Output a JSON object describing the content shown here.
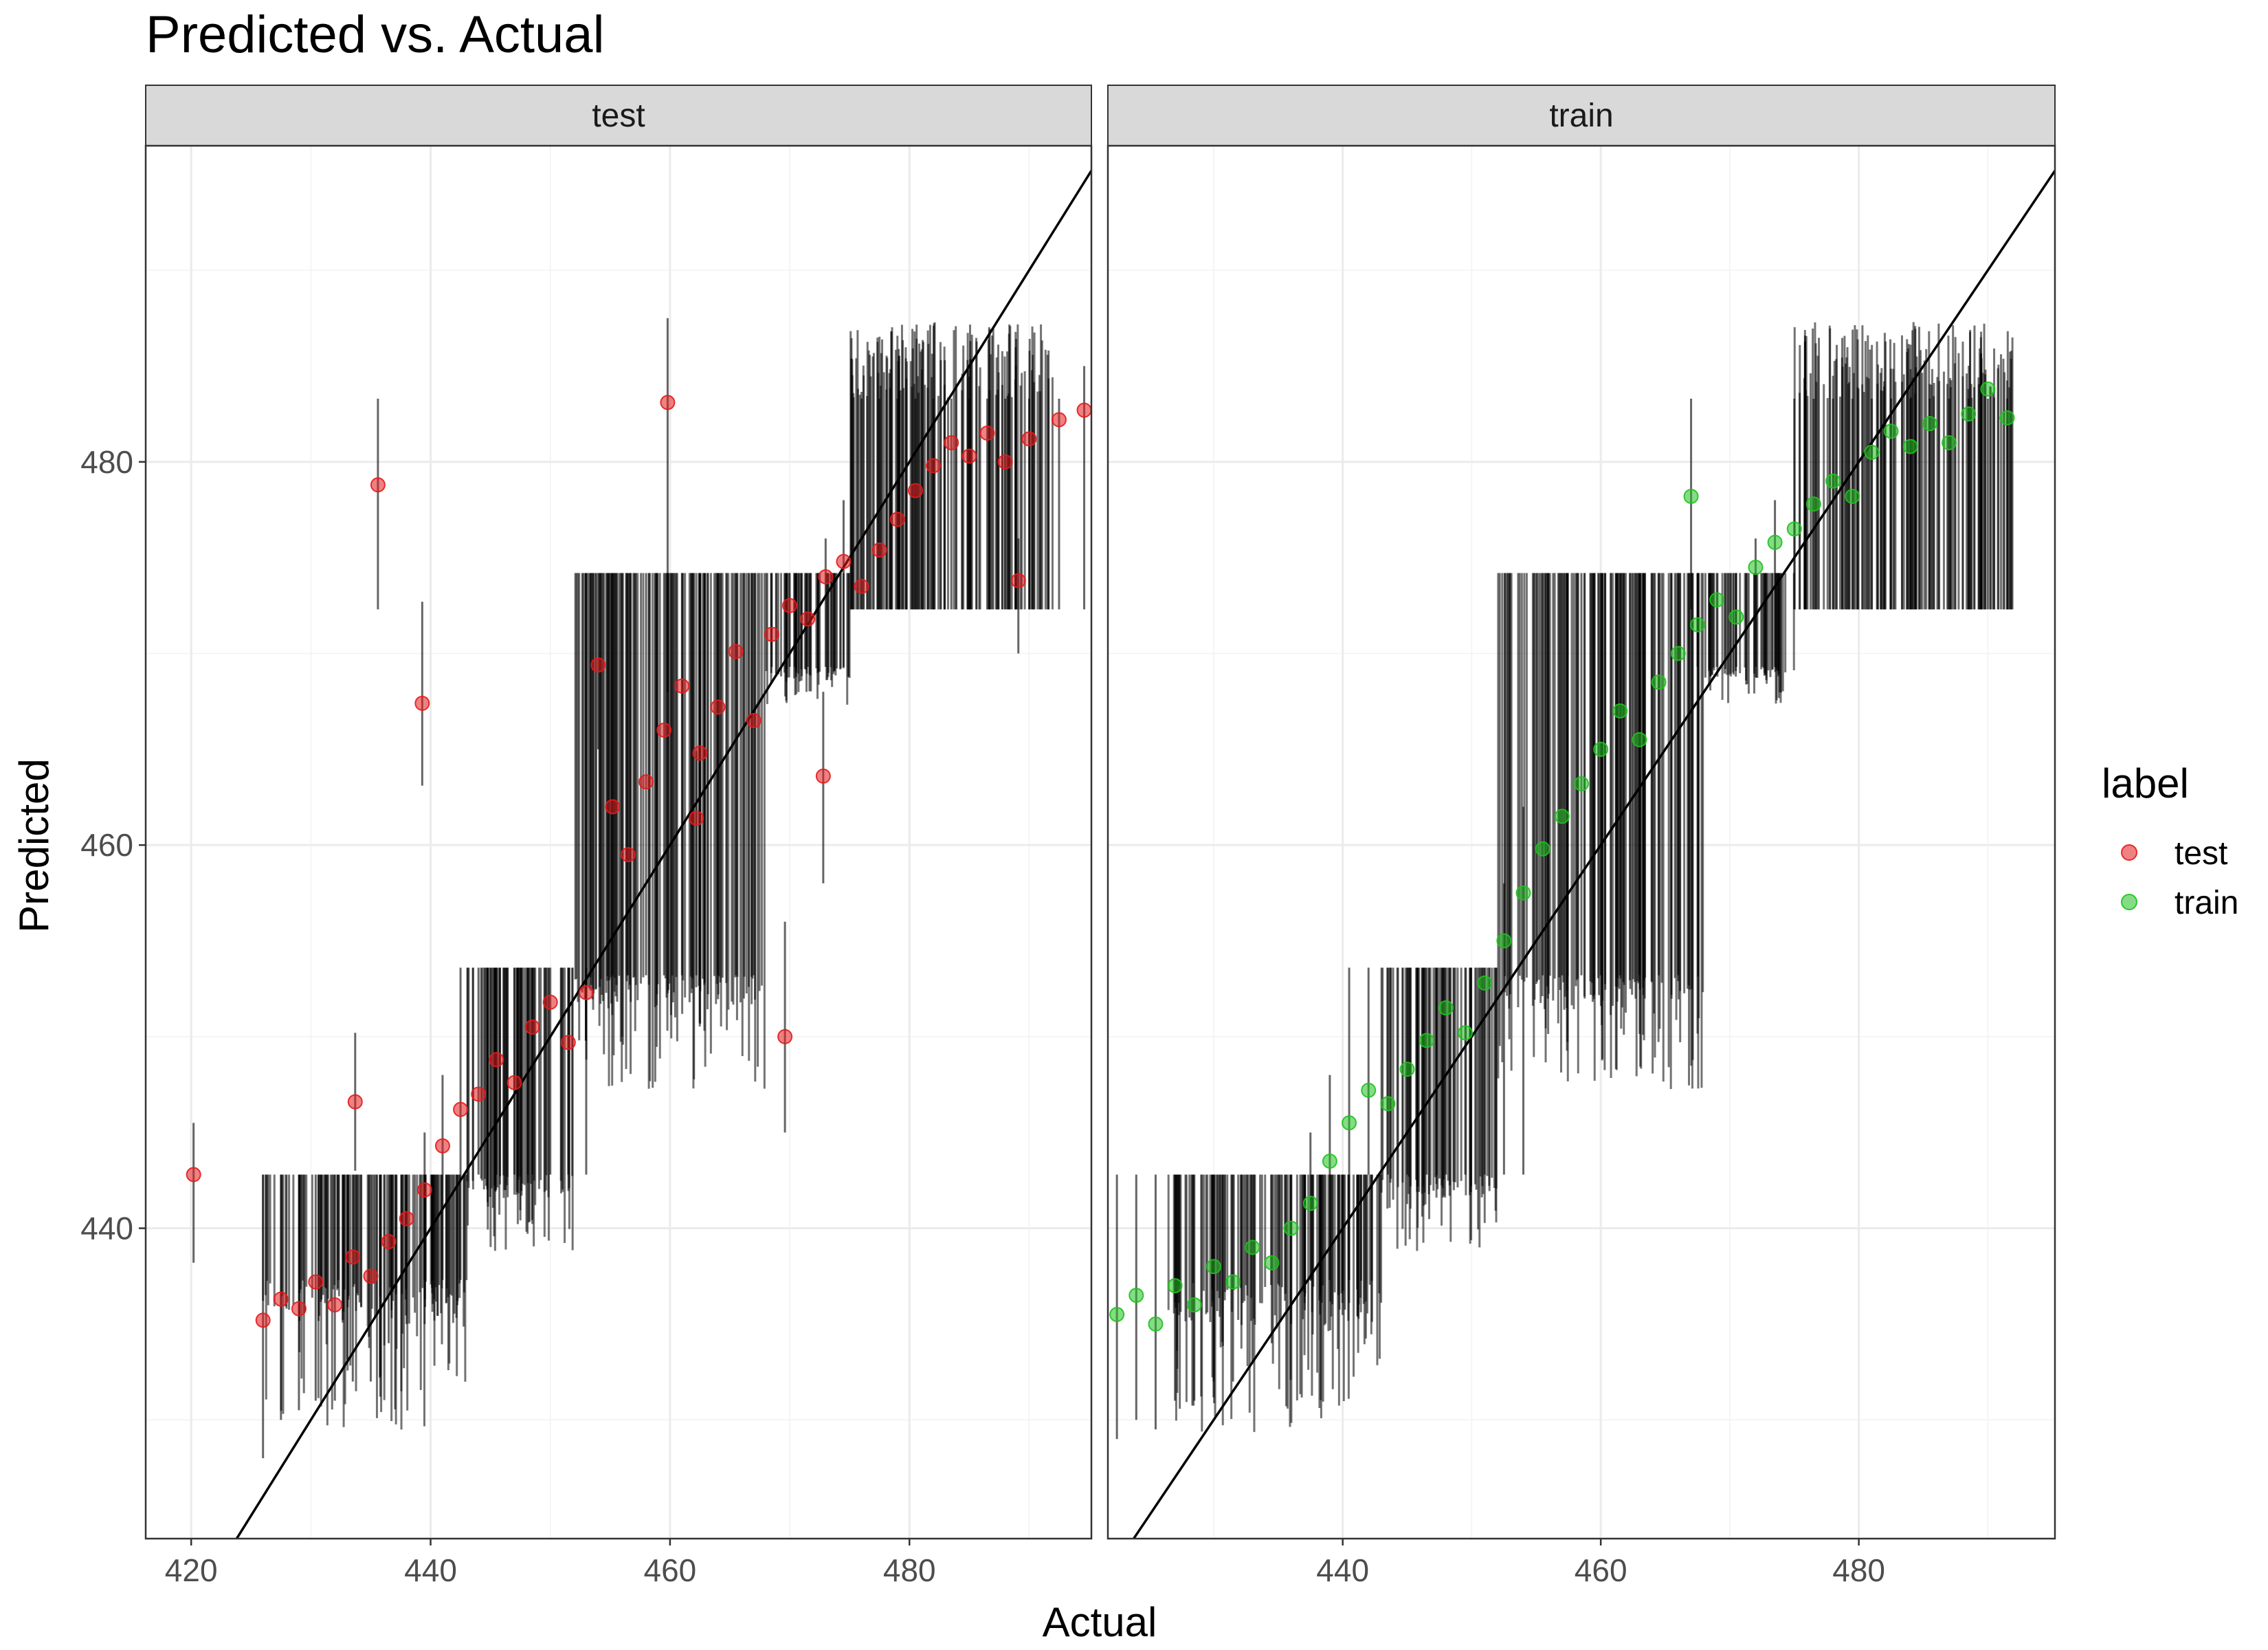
{
  "chart_data": {
    "type": "scatter",
    "title": "Predicted vs. Actual",
    "xlabel": "Actual",
    "ylabel": "Predicted",
    "facets": [
      {
        "label": "test",
        "xlim": [
          416.2,
          495.2
        ],
        "xticks": [
          420,
          440,
          460,
          480
        ]
      },
      {
        "label": "train",
        "xlim": [
          421.8,
          495.2
        ],
        "xticks": [
          440,
          460,
          480
        ]
      }
    ],
    "ylim": [
      423.8,
      496.5
    ],
    "yticks": [
      440,
      460,
      480
    ],
    "reference_line": {
      "type": "identity",
      "slope": 1,
      "intercept": 0
    },
    "legend": {
      "title": "label",
      "position": "right",
      "entries": [
        {
          "name": "test",
          "color": "#e41a1c"
        },
        {
          "name": "train",
          "color": "#1fc11f"
        }
      ]
    },
    "series": [
      {
        "name": "test",
        "color": "#e41a1c",
        "points": [
          [
            420.2,
            442.8,
            438.2,
            445.5
          ],
          [
            433.7,
            446.6,
            443.0,
            450.2
          ],
          [
            435.6,
            478.8,
            472.3,
            483.3
          ],
          [
            439.3,
            467.4,
            463.1,
            472.7
          ],
          [
            459.8,
            483.1,
            468.0,
            487.5
          ],
          [
            462.2,
            461.4,
            453.2,
            464.9
          ],
          [
            469.6,
            450.0,
            445.0,
            456.0
          ],
          [
            472.8,
            463.6,
            458.0,
            468.0
          ],
          [
            489.1,
            473.8,
            470.0,
            476.0
          ],
          [
            494.6,
            482.7,
            472.3,
            485.0
          ],
          [
            426.0,
            435.2,
            428.0,
            442.8
          ],
          [
            427.5,
            436.3,
            430.0,
            442.8
          ],
          [
            429.0,
            435.8,
            430.5,
            442.8
          ],
          [
            430.4,
            437.2,
            431.0,
            442.8
          ],
          [
            432.0,
            436.0,
            431.0,
            442.8
          ],
          [
            433.5,
            438.5,
            432.0,
            442.8
          ],
          [
            435.0,
            437.5,
            432.0,
            442.8
          ],
          [
            436.5,
            439.3,
            434.0,
            442.8
          ],
          [
            438.0,
            440.5,
            435.0,
            442.8
          ],
          [
            439.5,
            442.0,
            437.3,
            445.0
          ],
          [
            441.0,
            444.3,
            437.3,
            448.0
          ],
          [
            442.5,
            446.2,
            437.3,
            453.6
          ],
          [
            444.0,
            447.0,
            442.8,
            453.6
          ],
          [
            445.5,
            448.8,
            442.8,
            453.6
          ],
          [
            447.0,
            447.6,
            442.8,
            453.6
          ],
          [
            448.5,
            450.5,
            442.8,
            453.6
          ],
          [
            450.0,
            451.8,
            442.8,
            453.6
          ],
          [
            451.5,
            449.7,
            442.8,
            453.6
          ],
          [
            453.0,
            452.3,
            442.8,
            453.6
          ],
          [
            454.0,
            469.4,
            465.0,
            474.2
          ],
          [
            455.2,
            462.0,
            453.2,
            474.2
          ],
          [
            456.5,
            459.5,
            453.2,
            474.2
          ],
          [
            458.0,
            463.3,
            453.2,
            474.2
          ],
          [
            459.5,
            466.0,
            453.2,
            474.2
          ],
          [
            461.0,
            468.3,
            453.2,
            474.2
          ],
          [
            462.5,
            464.8,
            453.2,
            474.2
          ],
          [
            464.0,
            467.2,
            453.2,
            474.2
          ],
          [
            465.5,
            470.1,
            453.2,
            474.2
          ],
          [
            467.0,
            466.5,
            453.2,
            474.2
          ],
          [
            468.5,
            471.0,
            469.3,
            474.2
          ],
          [
            470.0,
            472.5,
            469.3,
            474.2
          ],
          [
            471.5,
            471.8,
            469.3,
            474.2
          ],
          [
            473.0,
            474.0,
            469.3,
            476.0
          ],
          [
            474.5,
            474.8,
            469.3,
            478.0
          ],
          [
            476.0,
            473.5,
            472.3,
            483.3
          ],
          [
            477.5,
            475.4,
            472.3,
            483.3
          ],
          [
            479.0,
            477.0,
            472.3,
            483.3
          ],
          [
            480.5,
            478.5,
            472.3,
            483.3
          ],
          [
            482.0,
            479.8,
            472.3,
            483.3
          ],
          [
            483.5,
            481.0,
            472.3,
            483.3
          ],
          [
            485.0,
            480.3,
            472.3,
            483.3
          ],
          [
            486.5,
            481.5,
            472.3,
            483.3
          ],
          [
            488.0,
            480.0,
            472.3,
            483.3
          ],
          [
            490.0,
            481.2,
            472.3,
            483.3
          ],
          [
            492.5,
            482.2,
            472.3,
            483.3
          ]
        ]
      },
      {
        "name": "train",
        "color": "#1fc11f",
        "points": [
          [
            422.5,
            435.5,
            429.0,
            442.8
          ],
          [
            424.0,
            436.5,
            430.0,
            442.8
          ],
          [
            425.5,
            435.0,
            429.5,
            442.8
          ],
          [
            427.0,
            437.0,
            431.0,
            442.8
          ],
          [
            428.5,
            436.0,
            431.0,
            442.8
          ],
          [
            430.0,
            438.0,
            432.0,
            442.8
          ],
          [
            431.5,
            437.2,
            432.0,
            442.8
          ],
          [
            433.0,
            439.0,
            433.0,
            442.8
          ],
          [
            434.5,
            438.2,
            434.0,
            442.8
          ],
          [
            436.0,
            440.0,
            435.0,
            442.8
          ],
          [
            437.5,
            441.3,
            437.3,
            445.0
          ],
          [
            439.0,
            443.5,
            437.3,
            448.0
          ],
          [
            440.5,
            445.5,
            437.3,
            453.6
          ],
          [
            442.0,
            447.2,
            442.8,
            453.6
          ],
          [
            443.5,
            446.5,
            442.8,
            453.6
          ],
          [
            445.0,
            448.3,
            442.8,
            453.6
          ],
          [
            446.5,
            449.8,
            442.8,
            453.6
          ],
          [
            448.0,
            451.5,
            442.8,
            453.6
          ],
          [
            449.5,
            450.2,
            442.8,
            453.6
          ],
          [
            451.0,
            452.8,
            442.8,
            453.6
          ],
          [
            452.5,
            455.0,
            442.8,
            458.0
          ],
          [
            454.0,
            457.5,
            442.8,
            462.0
          ],
          [
            455.5,
            459.8,
            453.2,
            474.2
          ],
          [
            457.0,
            461.5,
            453.2,
            474.2
          ],
          [
            458.5,
            463.2,
            453.2,
            474.2
          ],
          [
            460.0,
            465.0,
            453.2,
            474.2
          ],
          [
            461.5,
            467.0,
            453.2,
            474.2
          ],
          [
            463.0,
            465.5,
            453.2,
            474.2
          ],
          [
            464.5,
            468.5,
            453.2,
            474.2
          ],
          [
            466.0,
            470.0,
            453.2,
            474.2
          ],
          [
            467.0,
            478.2,
            472.3,
            483.3
          ],
          [
            467.5,
            471.5,
            469.3,
            474.2
          ],
          [
            469.0,
            472.8,
            469.3,
            474.2
          ],
          [
            470.5,
            471.9,
            469.3,
            474.2
          ],
          [
            472.0,
            474.5,
            469.3,
            476.0
          ],
          [
            473.5,
            475.8,
            469.3,
            478.0
          ],
          [
            475.0,
            476.5,
            472.3,
            483.3
          ],
          [
            476.5,
            477.8,
            472.3,
            483.3
          ],
          [
            478.0,
            479.0,
            472.3,
            483.3
          ],
          [
            479.5,
            478.2,
            472.3,
            483.3
          ],
          [
            481.0,
            480.5,
            472.3,
            483.3
          ],
          [
            482.5,
            481.6,
            472.3,
            483.3
          ],
          [
            484.0,
            480.8,
            472.3,
            483.3
          ],
          [
            485.5,
            482.0,
            472.3,
            483.3
          ],
          [
            487.0,
            481.0,
            472.3,
            483.3
          ],
          [
            488.5,
            482.5,
            472.3,
            483.3
          ],
          [
            490.0,
            483.8,
            472.3,
            483.3
          ],
          [
            491.5,
            482.3,
            472.3,
            483.3
          ]
        ]
      }
    ]
  }
}
